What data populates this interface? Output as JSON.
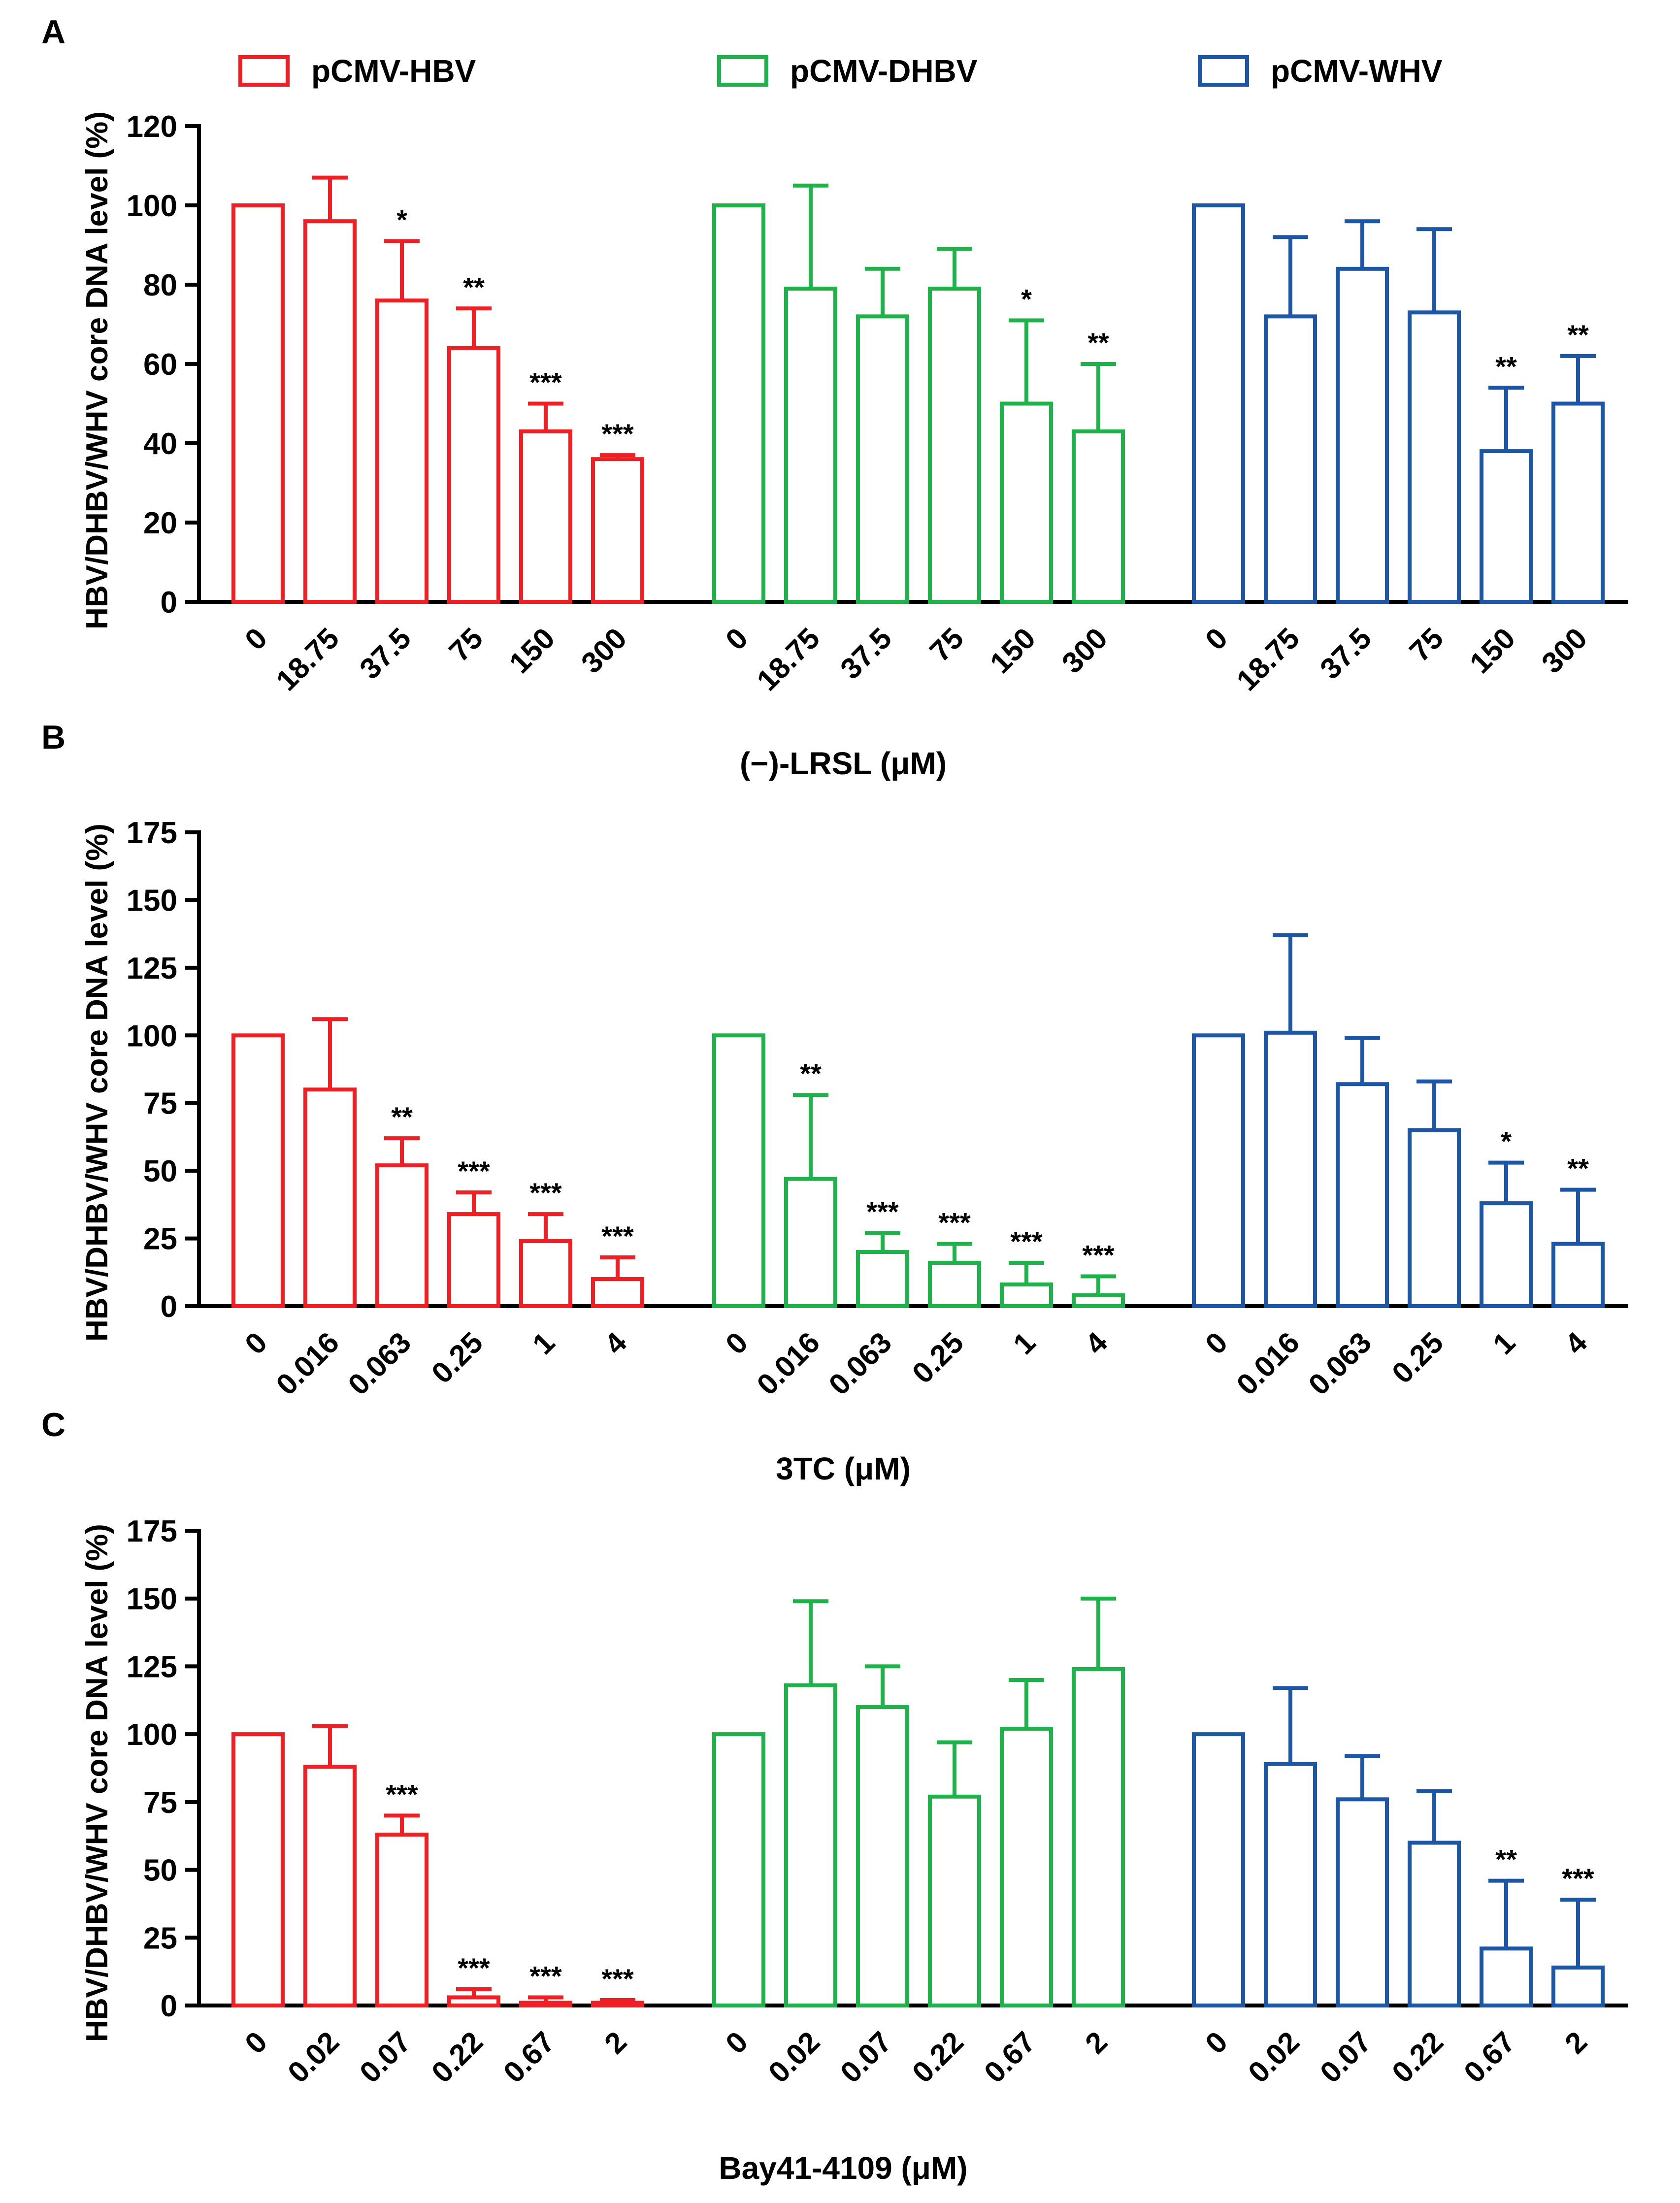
{
  "legend": [
    {
      "label": "pCMV-HBV",
      "color": "#ee1f25"
    },
    {
      "label": "pCMV-DHBV",
      "color": "#1fb24a"
    },
    {
      "label": "pCMV-WHV",
      "color": "#1c56a4"
    }
  ],
  "chart_data": [
    {
      "panel_label": "A",
      "type": "bar",
      "ylabel": "HBV/DHBV/WHV core DNA level (%)",
      "xlabel": "(−)-LRSL (μM)",
      "ylim": [
        0,
        120
      ],
      "yticks": [
        0,
        20,
        40,
        60,
        80,
        100,
        120
      ],
      "categories": [
        "0",
        "18.75",
        "37.5",
        "75",
        "150",
        "300"
      ],
      "series": [
        {
          "name": "pCMV-HBV",
          "values": [
            100,
            96,
            76,
            64,
            43,
            36
          ],
          "errors": [
            0,
            11,
            15,
            10,
            7,
            1
          ],
          "significance": [
            "",
            "",
            "*",
            "**",
            "***",
            "***"
          ]
        },
        {
          "name": "pCMV-DHBV",
          "values": [
            100,
            79,
            72,
            79,
            50,
            43
          ],
          "errors": [
            0,
            26,
            12,
            10,
            21,
            17
          ],
          "significance": [
            "",
            "",
            "",
            "",
            "*",
            "**"
          ]
        },
        {
          "name": "pCMV-WHV",
          "values": [
            100,
            72,
            84,
            73,
            38,
            50
          ],
          "errors": [
            0,
            20,
            12,
            21,
            16,
            12
          ],
          "significance": [
            "",
            "",
            "",
            "",
            "**",
            "**"
          ]
        }
      ]
    },
    {
      "panel_label": "B",
      "type": "bar",
      "ylabel": "HBV/DHBV/WHV core DNA level (%)",
      "xlabel": "3TC (μM)",
      "ylim": [
        0,
        175
      ],
      "yticks": [
        0,
        25,
        50,
        75,
        100,
        125,
        150,
        175
      ],
      "categories": [
        "0",
        "0.016",
        "0.063",
        "0.25",
        "1",
        "4"
      ],
      "series": [
        {
          "name": "pCMV-HBV",
          "values": [
            100,
            80,
            52,
            34,
            24,
            10
          ],
          "errors": [
            0,
            26,
            10,
            8,
            10,
            8
          ],
          "significance": [
            "",
            "",
            "**",
            "***",
            "***",
            "***"
          ]
        },
        {
          "name": "pCMV-DHBV",
          "values": [
            100,
            47,
            20,
            16,
            8,
            4
          ],
          "errors": [
            0,
            31,
            7,
            7,
            8,
            7
          ],
          "significance": [
            "",
            "**",
            "***",
            "***",
            "***",
            "***"
          ]
        },
        {
          "name": "pCMV-WHV",
          "values": [
            100,
            101,
            82,
            65,
            38,
            23
          ],
          "errors": [
            0,
            36,
            17,
            18,
            15,
            20
          ],
          "significance": [
            "",
            "",
            "",
            "",
            "*",
            "**"
          ]
        }
      ]
    },
    {
      "panel_label": "C",
      "type": "bar",
      "ylabel": "HBV/DHBV/WHV core DNA level (%)",
      "xlabel": "Bay41-4109 (μM)",
      "ylim": [
        0,
        175
      ],
      "yticks": [
        0,
        25,
        50,
        75,
        100,
        125,
        150,
        175
      ],
      "categories": [
        "0",
        "0.02",
        "0.07",
        "0.22",
        "0.67",
        "2"
      ],
      "series": [
        {
          "name": "pCMV-HBV",
          "values": [
            100,
            88,
            63,
            3,
            1,
            1
          ],
          "errors": [
            0,
            15,
            7,
            3,
            2,
            1
          ],
          "significance": [
            "",
            "",
            "***",
            "***",
            "***",
            "***"
          ]
        },
        {
          "name": "pCMV-DHBV",
          "values": [
            100,
            118,
            110,
            77,
            102,
            124
          ],
          "errors": [
            0,
            31,
            15,
            20,
            18,
            26
          ],
          "significance": [
            "",
            "",
            "",
            "",
            "",
            ""
          ]
        },
        {
          "name": "pCMV-WHV",
          "values": [
            100,
            89,
            76,
            60,
            21,
            14
          ],
          "errors": [
            0,
            28,
            16,
            19,
            25,
            25
          ],
          "significance": [
            "",
            "",
            "",
            "",
            "**",
            "***"
          ]
        }
      ]
    }
  ]
}
